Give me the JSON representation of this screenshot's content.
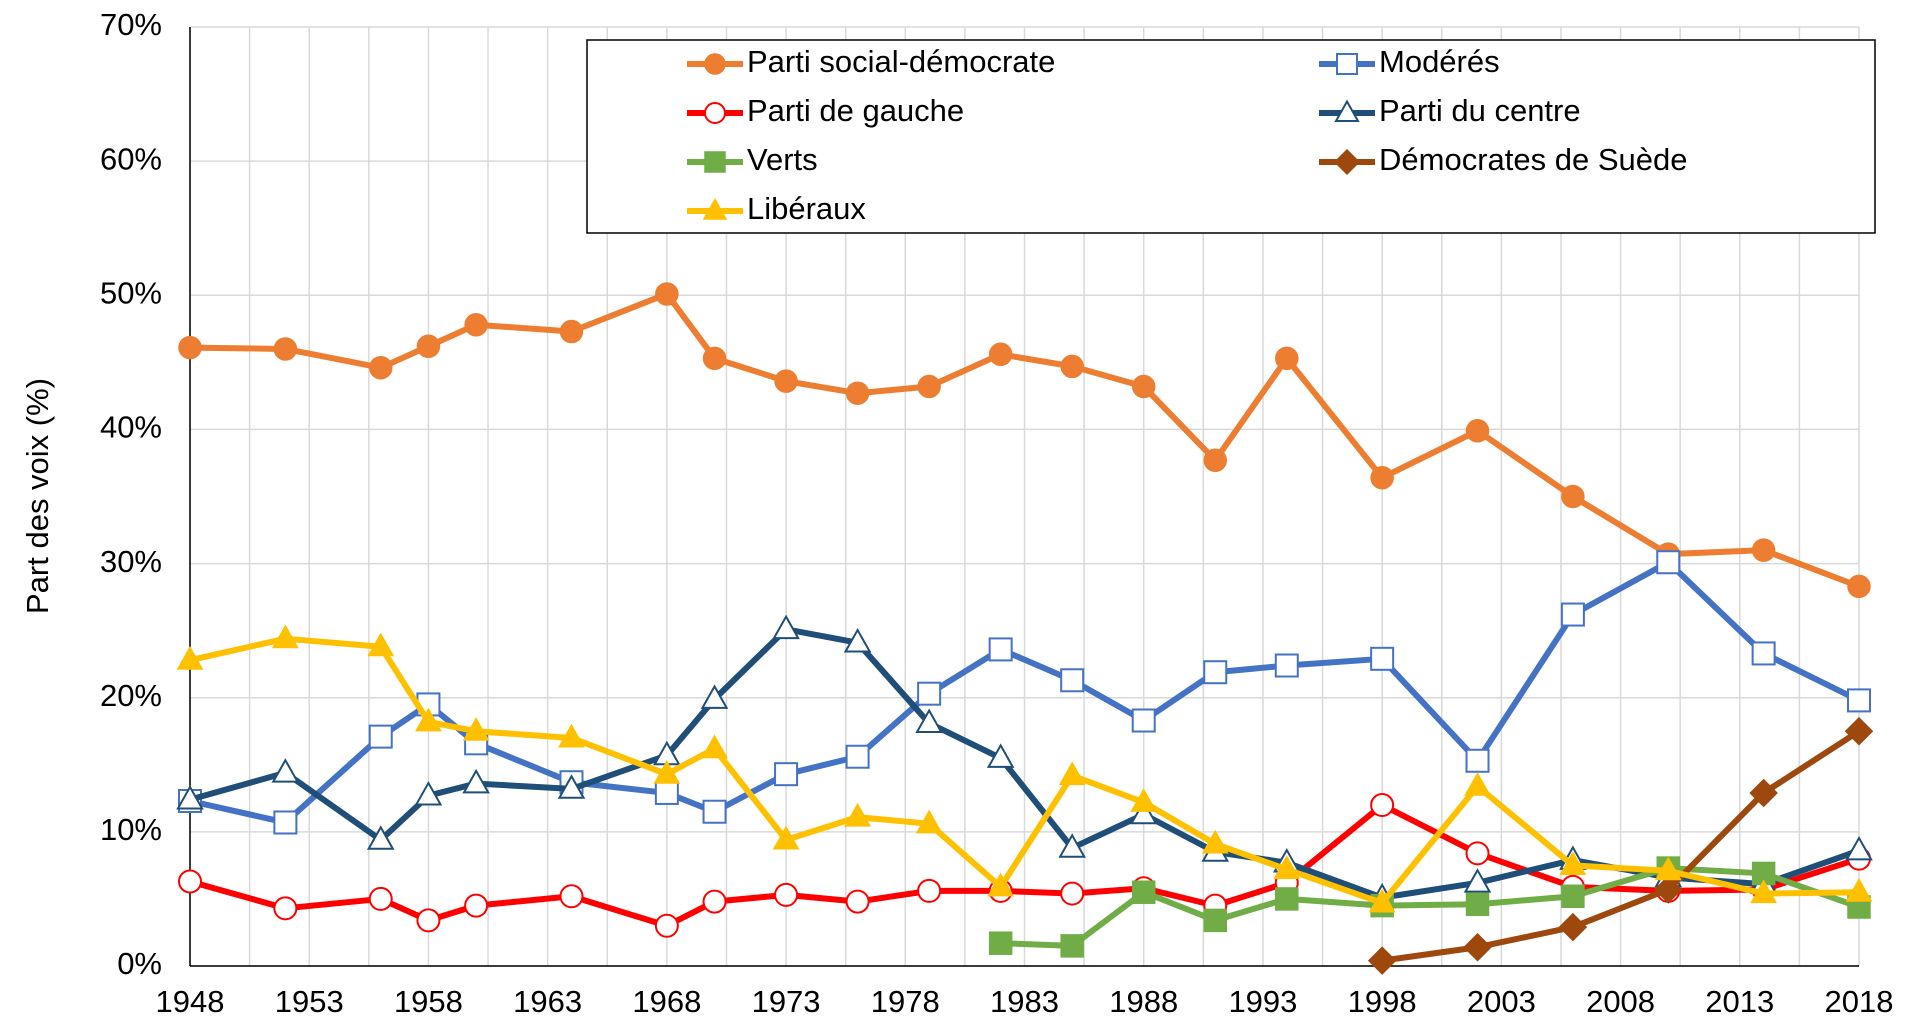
{
  "chart_data": {
    "type": "line",
    "y_label": "Part des voix (%)",
    "x": [
      1948,
      1952,
      1956,
      1958,
      1960,
      1964,
      1968,
      1970,
      1973,
      1976,
      1979,
      1982,
      1985,
      1988,
      1991,
      1994,
      1998,
      2002,
      2006,
      2010,
      2014,
      2018
    ],
    "xlim": [
      1948,
      2018
    ],
    "xticks": [
      1948,
      1953,
      1958,
      1963,
      1968,
      1973,
      1978,
      1983,
      1988,
      1993,
      1998,
      2003,
      2008,
      2013,
      2018
    ],
    "xminorgrid": [
      1950.5,
      1955.5,
      1960.5,
      1965.5,
      1970.5,
      1975.5,
      1980.5,
      1985.5,
      1990.5,
      1995.5,
      2000.5,
      2005.5,
      2010.5,
      2015.5
    ],
    "ylim": [
      0,
      70
    ],
    "yticks": [
      {
        "value": 0,
        "label": "0%"
      },
      {
        "value": 10,
        "label": "10%"
      },
      {
        "value": 20,
        "label": "20%"
      },
      {
        "value": 30,
        "label": "30%"
      },
      {
        "value": 40,
        "label": "40%"
      },
      {
        "value": 50,
        "label": "50%"
      },
      {
        "value": 60,
        "label": "60%"
      },
      {
        "value": 70,
        "label": "70%"
      }
    ],
    "grid": true,
    "legend": "top-right",
    "series": [
      {
        "name": "Parti social-démocrate",
        "color": "#ED7D31",
        "marker": "circle",
        "filled": true,
        "values": [
          46.1,
          46.0,
          44.6,
          46.2,
          47.8,
          47.3,
          50.1,
          45.3,
          43.6,
          42.7,
          43.2,
          45.6,
          44.7,
          43.2,
          37.7,
          45.3,
          36.4,
          39.9,
          35.0,
          30.7,
          31.0,
          28.3
        ]
      },
      {
        "name": "Modérés",
        "color": "#4472C4",
        "marker": "square",
        "filled": false,
        "values": [
          12.3,
          10.7,
          17.1,
          19.5,
          16.6,
          13.7,
          12.9,
          11.5,
          14.3,
          15.6,
          20.3,
          23.6,
          21.3,
          18.3,
          21.9,
          22.4,
          22.9,
          15.3,
          26.2,
          30.1,
          23.3,
          19.8
        ]
      },
      {
        "name": "Parti de gauche",
        "color": "#FF0000",
        "marker": "circle",
        "filled": false,
        "values": [
          6.3,
          4.3,
          5.0,
          3.4,
          4.5,
          5.2,
          3.0,
          4.8,
          5.3,
          4.8,
          5.6,
          5.6,
          5.4,
          5.8,
          4.5,
          6.2,
          12.0,
          8.4,
          5.9,
          5.6,
          5.7,
          8.0
        ]
      },
      {
        "name": "Parti du centre",
        "color": "#1F4E79",
        "marker": "triangle",
        "filled": false,
        "values": [
          12.4,
          14.4,
          9.4,
          12.7,
          13.6,
          13.2,
          15.7,
          19.9,
          25.1,
          24.1,
          18.1,
          15.5,
          8.8,
          11.3,
          8.5,
          7.7,
          5.1,
          6.2,
          7.9,
          6.6,
          6.1,
          8.6
        ]
      },
      {
        "name": "Verts",
        "color": "#70AD47",
        "marker": "square",
        "filled": true,
        "values": [
          null,
          null,
          null,
          null,
          null,
          null,
          null,
          null,
          null,
          null,
          null,
          1.7,
          1.5,
          5.5,
          3.4,
          5.0,
          4.5,
          4.6,
          5.2,
          7.3,
          6.9,
          4.4
        ]
      },
      {
        "name": "Démocrates de Suède",
        "color": "#9E480E",
        "marker": "diamond",
        "filled": true,
        "values": [
          null,
          null,
          null,
          null,
          null,
          null,
          null,
          null,
          null,
          null,
          null,
          null,
          null,
          null,
          null,
          null,
          0.4,
          1.4,
          2.9,
          5.7,
          12.9,
          17.5
        ]
      },
      {
        "name": "Libéraux",
        "color": "#FFC000",
        "marker": "triangle",
        "filled": true,
        "values": [
          22.8,
          24.4,
          23.8,
          18.2,
          17.5,
          17.0,
          14.3,
          16.2,
          9.4,
          11.1,
          10.6,
          5.9,
          14.2,
          12.2,
          9.1,
          7.2,
          4.7,
          13.4,
          7.5,
          7.1,
          5.4,
          5.5
        ]
      }
    ]
  }
}
